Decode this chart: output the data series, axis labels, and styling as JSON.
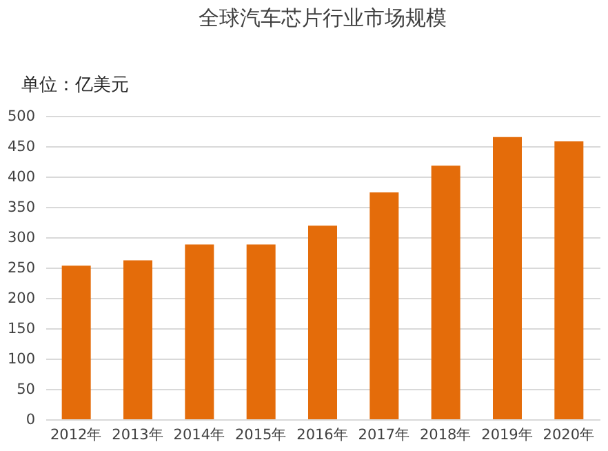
{
  "chart_data": {
    "type": "bar",
    "title": "全球汽车芯片行业市场规模",
    "ylabel": "单位：亿美元",
    "categories": [
      "2012年",
      "2013年",
      "2014年",
      "2015年",
      "2016年",
      "2017年",
      "2018年",
      "2019年",
      "2020年"
    ],
    "values": [
      253,
      262,
      288,
      288,
      319,
      374,
      418,
      465,
      458
    ],
    "color": "#e46c0a",
    "ylim": [
      0,
      500
    ],
    "yticks": [
      0,
      50,
      100,
      150,
      200,
      250,
      300,
      350,
      400,
      450,
      500
    ],
    "grid": "y"
  }
}
